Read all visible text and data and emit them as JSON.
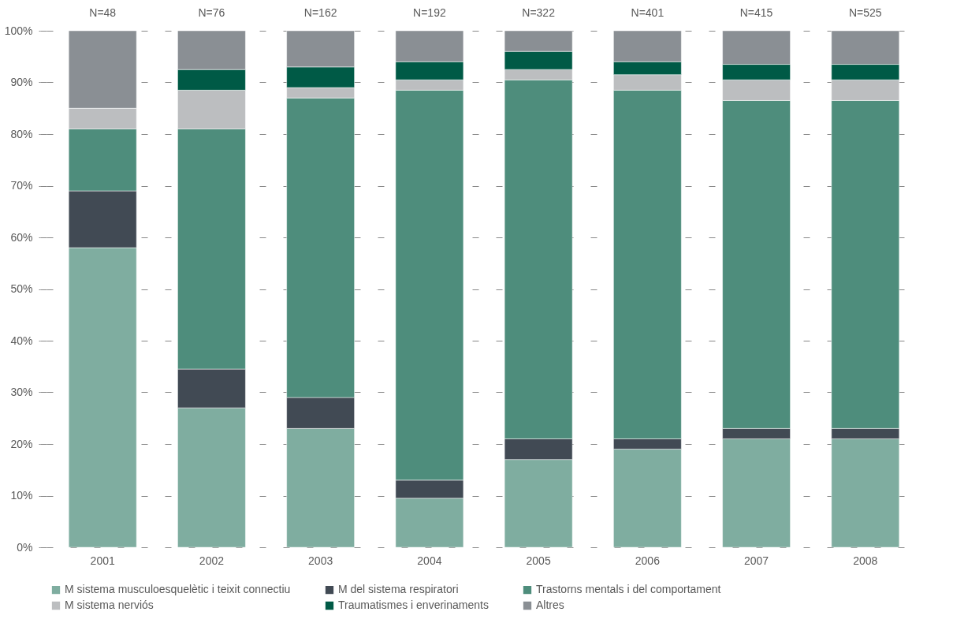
{
  "chart_data": {
    "type": "bar",
    "stacked": true,
    "categories": [
      "2001",
      "2002",
      "2003",
      "2004",
      "2005",
      "2006",
      "2007",
      "2008"
    ],
    "series": [
      {
        "name": "M sistema musculoesquelètic i teixit connectiu",
        "color": "#7fada0",
        "values": [
          58,
          27,
          23,
          9.5,
          17,
          19,
          21,
          21
        ]
      },
      {
        "name": "M del sistema respiratori",
        "color": "#414a54",
        "values": [
          11,
          7.5,
          6,
          3.5,
          4,
          2,
          2,
          2
        ]
      },
      {
        "name": "Trastorns mentals i del comportament",
        "color": "#4e8d7c",
        "values": [
          12,
          46.5,
          58,
          75.5,
          69.5,
          67.5,
          63.5,
          63.5
        ]
      },
      {
        "name": "M sistema nerviós",
        "color": "#bcbec0",
        "values": [
          4,
          7.5,
          2,
          2,
          2,
          3,
          4,
          4
        ]
      },
      {
        "name": "Traumatismes i enverinaments",
        "color": "#005a46",
        "values": [
          0,
          4,
          4,
          3.5,
          3.5,
          2.5,
          3,
          3
        ]
      },
      {
        "name": "Altres",
        "color": "#8a8f94",
        "values": [
          15,
          7.5,
          7,
          6,
          4,
          6,
          6.5,
          6.5
        ]
      }
    ],
    "ylim": [
      0,
      100
    ],
    "yticks": [
      {
        "value": 0,
        "label": "0%"
      },
      {
        "value": 10,
        "label": "10%"
      },
      {
        "value": 20,
        "label": "20%"
      },
      {
        "value": 30,
        "label": "30%"
      },
      {
        "value": 40,
        "label": "40%"
      },
      {
        "value": 50,
        "label": "50%"
      },
      {
        "value": 60,
        "label": "60%"
      },
      {
        "value": 70,
        "label": "70%"
      },
      {
        "value": 80,
        "label": "80%"
      },
      {
        "value": 90,
        "label": "90%"
      },
      {
        "value": 100,
        "label": "100%"
      }
    ],
    "grid": "y",
    "legend": "bottom",
    "annotations": [
      {
        "text": "N=48",
        "x": "2001",
        "y": 100
      },
      {
        "text": "N=76",
        "x": "2002",
        "y": 100
      },
      {
        "text": "N=162",
        "x": "2003",
        "y": 100
      },
      {
        "text": "N=192",
        "x": "2004",
        "y": 100
      },
      {
        "text": "N=322",
        "x": "2005",
        "y": 100
      },
      {
        "text": "N=401",
        "x": "2006",
        "y": 100
      },
      {
        "text": "N=415",
        "x": "2007",
        "y": 100
      },
      {
        "text": "N=525",
        "x": "2008",
        "y": 100
      }
    ]
  }
}
